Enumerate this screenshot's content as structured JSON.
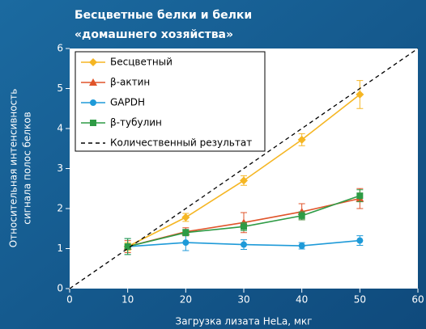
{
  "chart_data": {
    "type": "line",
    "title": [
      "Бесцветные белки и белки",
      "«домашнего хозяйства»"
    ],
    "xlabel": "Загрузка лизата HeLa, мкг",
    "ylabel": [
      "Относительная интенсивность",
      "сигнала полос белков"
    ],
    "x": [
      10,
      20,
      30,
      40,
      50
    ],
    "series": [
      {
        "name": "Бесцветный",
        "color": "#f5b623",
        "marker": "diamond",
        "values": [
          1.05,
          1.78,
          2.7,
          3.72,
          4.85
        ],
        "errors": [
          0.1,
          0.1,
          0.12,
          0.15,
          0.35
        ]
      },
      {
        "name": "β-актин",
        "color": "#e0542a",
        "marker": "triangle",
        "values": [
          1.05,
          1.42,
          1.65,
          1.92,
          2.25
        ],
        "errors": [
          0.15,
          0.1,
          0.25,
          0.2,
          0.25
        ]
      },
      {
        "name": "GAPDH",
        "color": "#1e9ad8",
        "marker": "circle",
        "values": [
          1.05,
          1.15,
          1.1,
          1.07,
          1.2
        ],
        "errors": [
          0.2,
          0.2,
          0.12,
          0.08,
          0.12
        ]
      },
      {
        "name": "β-тубулин",
        "color": "#2e9b45",
        "marker": "square",
        "values": [
          1.05,
          1.4,
          1.55,
          1.82,
          2.32
        ],
        "errors": [
          0.2,
          0.08,
          0.1,
          0.1,
          0.15
        ]
      },
      {
        "name": "Количественный результат",
        "color": "#000000",
        "dashed": true,
        "x": [
          0,
          60
        ],
        "values": [
          0,
          6
        ]
      }
    ],
    "xlim": [
      0,
      60
    ],
    "xticks": [
      0,
      10,
      20,
      30,
      40,
      50,
      60
    ],
    "ylim": [
      0,
      6
    ],
    "yticks": [
      0,
      1,
      2,
      3,
      4,
      5,
      6
    ],
    "legend": "upper left"
  }
}
